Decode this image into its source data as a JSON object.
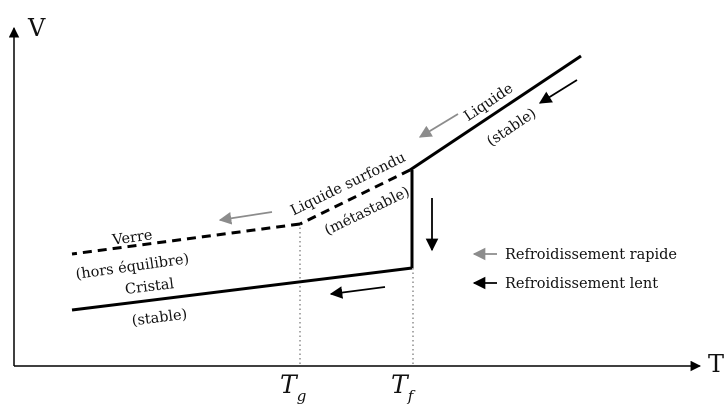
{
  "axes": {
    "y_label": "V",
    "x_label": "T",
    "tick_g_main": "T",
    "tick_g_sub": "g",
    "tick_f_main": "T",
    "tick_f_sub": "f"
  },
  "labels": {
    "liquide": "Liquide",
    "liquide_state": "(stable)",
    "surfondu": "Liquide surfondu",
    "surfondu_state": "(métastable)",
    "verre": "Verre",
    "verre_state": "(hors équilibre)",
    "cristal": "Cristal",
    "cristal_state": "(stable)"
  },
  "legend": {
    "fast": "Refroidissement rapide",
    "slow": "Refroidissement lent"
  },
  "colors": {
    "line": "#000000",
    "fast_arrow": "#8c8c8c",
    "slow_arrow": "#000000",
    "guide": "#555555"
  }
}
